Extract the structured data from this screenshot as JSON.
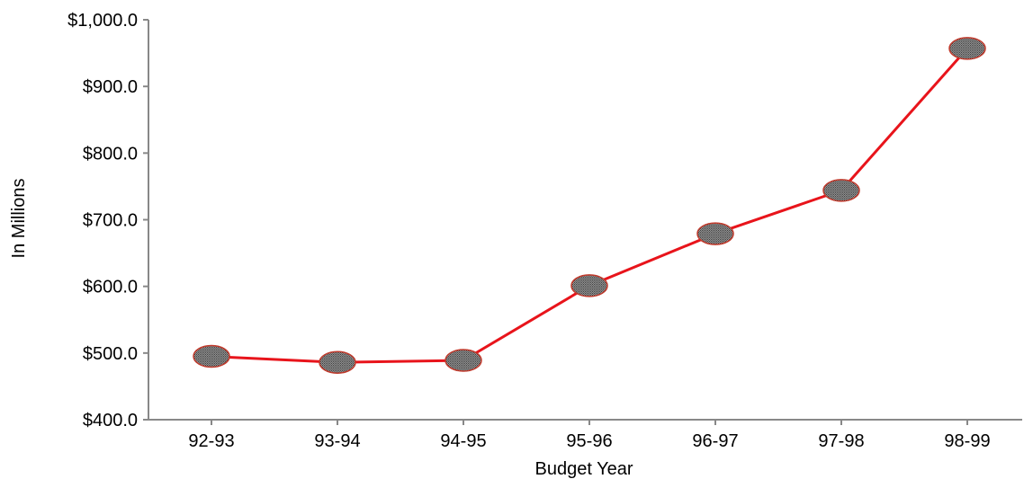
{
  "chart_data": {
    "type": "line",
    "title": "",
    "xlabel": "Budget Year",
    "ylabel": "In Millions",
    "categories": [
      "92-93",
      "93-94",
      "94-95",
      "95-96",
      "96-97",
      "97-98",
      "98-99"
    ],
    "series": [
      {
        "values": [
          495,
          486,
          489,
          601,
          679,
          744,
          957
        ]
      }
    ],
    "ylim": [
      400,
      1000
    ],
    "yticks": [
      400,
      500,
      600,
      700,
      800,
      900,
      1000
    ],
    "ytick_labels": [
      "$400.0",
      "$500.0",
      "$600.0",
      "$700.0",
      "$800.0",
      "$900.0",
      "$1,000.0"
    ],
    "grid": false,
    "legend": "none",
    "colors": {
      "line": "#e8141b",
      "marker_fill": "#8c8c8c",
      "marker_stroke": "#c0392b",
      "axis": "#888888"
    }
  }
}
